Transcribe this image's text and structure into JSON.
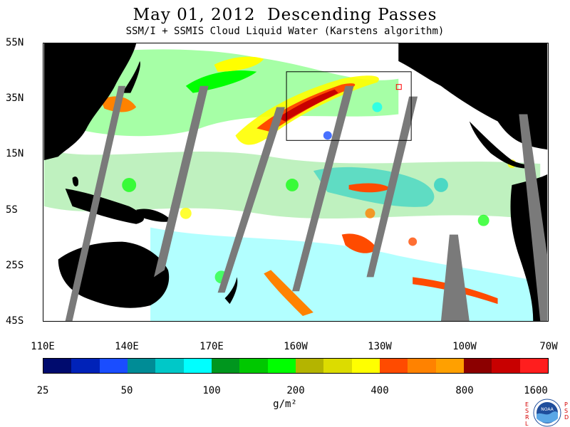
{
  "header": {
    "title": "May 01, 2012  Descending Passes",
    "subtitle": "SSM/I + SSMIS Cloud Liquid Water (Karstens algorithm)"
  },
  "axes": {
    "latitude_labels": [
      "55N",
      "35N",
      "15N",
      "5S",
      "25S",
      "45S"
    ],
    "longitude_labels": [
      "110E",
      "140E",
      "170E",
      "160W",
      "130W",
      "100W",
      "70W"
    ]
  },
  "colorbar": {
    "labels": [
      "25",
      "50",
      "100",
      "200",
      "400",
      "800",
      "1600"
    ],
    "units": "g/m²",
    "colors": [
      "#000b6e",
      "#0022b8",
      "#1a4dff",
      "#008c96",
      "#00c8c8",
      "#00ffff",
      "#00961e",
      "#00c800",
      "#00ff00",
      "#b4b400",
      "#dcdc00",
      "#ffff00",
      "#ff4b00",
      "#ff8200",
      "#ffa000",
      "#8c0000",
      "#c80000",
      "#ff1e1e"
    ]
  },
  "logo": {
    "left_vertical_text": "ESRL",
    "right_vertical_text": "PSD",
    "badge_text": "NOAA"
  },
  "map_colors": {
    "land": "#000000",
    "ocean": "#ffffff",
    "gap": "#7a7a7a",
    "box": "#000000",
    "marker": "#ff0000"
  }
}
